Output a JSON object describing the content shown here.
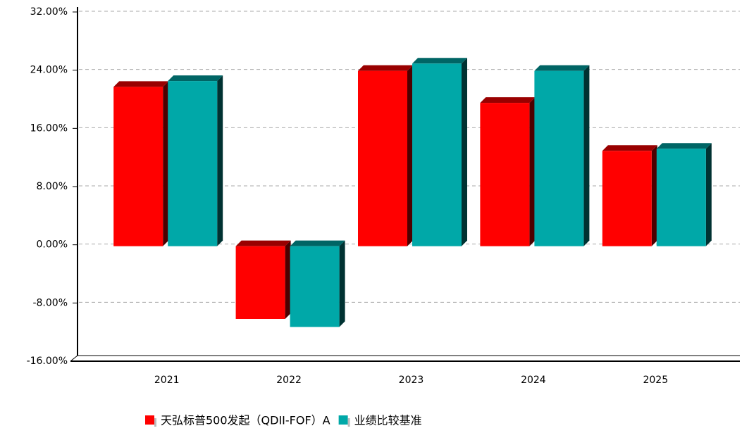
{
  "chart_data": {
    "type": "bar3d",
    "categories": [
      "2021",
      "2022",
      "2023",
      "2024",
      "2025"
    ],
    "series": [
      {
        "name": "天弘标普500发起（QDII-FOF）A",
        "color": "#ff0000",
        "values": [
          21.9,
          -10.0,
          24.1,
          19.7,
          13.1
        ]
      },
      {
        "name": "业绩比较基准",
        "color": "#00a8a8",
        "values": [
          22.7,
          -11.1,
          25.1,
          24.1,
          13.4
        ]
      }
    ],
    "ylim": [
      -16,
      32
    ],
    "yticks": [
      {
        "value": -16,
        "label": "-16.00%"
      },
      {
        "value": -8,
        "label": "-8.00%"
      },
      {
        "value": 0,
        "label": "0.00%"
      },
      {
        "value": 8,
        "label": "8.00%"
      },
      {
        "value": 16,
        "label": "16.00%"
      },
      {
        "value": 24,
        "label": "24.00%"
      },
      {
        "value": 32,
        "label": "32.00%"
      }
    ],
    "grid": true
  }
}
